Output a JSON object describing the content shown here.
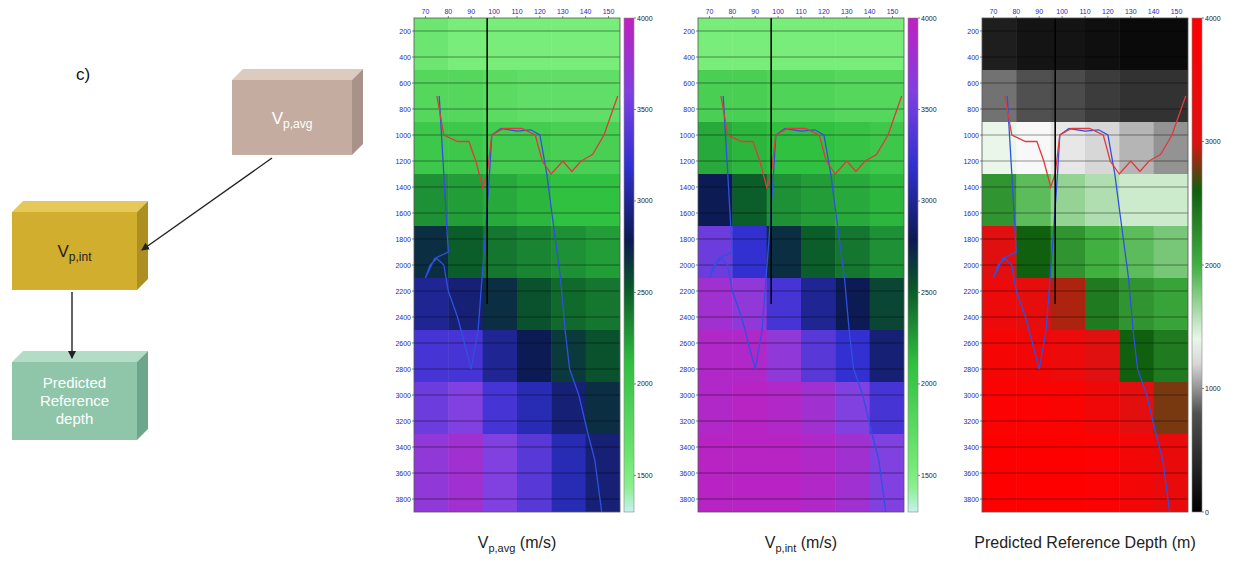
{
  "diagram": {
    "panel_label": "c)",
    "nodes": [
      {
        "label": "V",
        "sub": "p,avg"
      },
      {
        "label": "V",
        "sub": "p,int"
      },
      {
        "label": "Predicted Reference depth"
      }
    ]
  },
  "overlays": [
    {
      "color": "#3050e0",
      "x": [
        76,
        77,
        78,
        79,
        80,
        74,
        70,
        72,
        75,
        78,
        80,
        84,
        87,
        90,
        93,
        96,
        98,
        99,
        103,
        110,
        116,
        120,
        123,
        126,
        129,
        131,
        133,
        137,
        141,
        144,
        147
      ],
      "y": [
        700,
        1000,
        1300,
        1600,
        1900,
        1950,
        2100,
        2000,
        1950,
        2000,
        2200,
        2400,
        2600,
        2800,
        2500,
        1800,
        1300,
        1000,
        950,
        970,
        960,
        1000,
        1300,
        1700,
        2100,
        2500,
        2800,
        3000,
        3300,
        3500,
        3900
      ]
    },
    {
      "color": "#e03a3a",
      "x": [
        75,
        77,
        78,
        84,
        89,
        92,
        95,
        97,
        99,
        104,
        112,
        118,
        121,
        125,
        130,
        134,
        138,
        143,
        148,
        152,
        154
      ],
      "y": [
        700,
        900,
        1000,
        1050,
        1050,
        1200,
        1400,
        1300,
        1000,
        950,
        950,
        1000,
        1200,
        1300,
        1200,
        1280,
        1200,
        1150,
        1000,
        800,
        700
      ]
    },
    {
      "color": "#000000",
      "x": [
        97,
        97
      ],
      "y": [
        100,
        2300
      ]
    }
  ],
  "chart_data": [
    {
      "type": "heatmap",
      "caption": {
        "label": "V",
        "sub": "p,avg",
        "unit": "(m/s)"
      },
      "color": "velocity",
      "grid": true,
      "xlim": [
        65,
        155
      ],
      "xticks": [
        70,
        80,
        90,
        100,
        110,
        120,
        130,
        140,
        150
      ],
      "ylim": [
        100,
        3900
      ],
      "yticks": [
        200,
        400,
        600,
        800,
        1000,
        1200,
        1400,
        1600,
        1800,
        2000,
        2200,
        2400,
        2600,
        2800,
        3000,
        3200,
        3400,
        3600,
        3800
      ],
      "x_edges": [
        65,
        80,
        95,
        110,
        125,
        140,
        155
      ],
      "y_edges": [
        100,
        500,
        900,
        1300,
        1700,
        2100,
        2500,
        2900,
        3300,
        3900
      ],
      "cells": [
        [
          1600,
          1500,
          1500,
          1500,
          1500,
          1500
        ],
        [
          1800,
          1800,
          1750,
          1700,
          1700,
          1700
        ],
        [
          2000,
          2000,
          1950,
          1950,
          1900,
          1900
        ],
        [
          2300,
          2250,
          2200,
          2150,
          2100,
          2100
        ],
        [
          2700,
          2500,
          2400,
          2350,
          2300,
          2250
        ],
        [
          3000,
          2900,
          2700,
          2550,
          2450,
          2400
        ],
        [
          3300,
          3300,
          3000,
          2800,
          2650,
          2550
        ],
        [
          3500,
          3600,
          3300,
          3100,
          2900,
          2700
        ],
        [
          3700,
          3800,
          3600,
          3400,
          3100,
          2900
        ]
      ],
      "colorbar": {
        "range": [
          1300,
          4000
        ],
        "ticks": [
          1500,
          2000,
          2500,
          3000,
          3500,
          4000
        ]
      }
    },
    {
      "type": "heatmap",
      "caption": {
        "label": "V",
        "sub": "p,int",
        "unit": "(m/s)"
      },
      "color": "velocity",
      "grid": true,
      "xlim": [
        65,
        155
      ],
      "xticks": [
        70,
        80,
        90,
        100,
        110,
        120,
        130,
        140,
        150
      ],
      "ylim": [
        100,
        3900
      ],
      "yticks": [
        200,
        400,
        600,
        800,
        1000,
        1200,
        1400,
        1600,
        1800,
        2000,
        2200,
        2400,
        2600,
        2800,
        3000,
        3200,
        3400,
        3600,
        3800
      ],
      "x_edges": [
        65,
        80,
        95,
        110,
        125,
        140,
        155
      ],
      "y_edges": [
        100,
        500,
        900,
        1300,
        1700,
        2100,
        2500,
        2900,
        3300,
        3900
      ],
      "cells": [
        [
          1500,
          1500,
          1500,
          1500,
          1500,
          1500
        ],
        [
          1900,
          1900,
          1850,
          1850,
          1800,
          1800
        ],
        [
          2200,
          2150,
          2100,
          2100,
          2050,
          2000
        ],
        [
          2800,
          2500,
          2300,
          2250,
          2200,
          2150
        ],
        [
          3500,
          3200,
          2700,
          2500,
          2400,
          2300
        ],
        [
          3800,
          3700,
          3300,
          3000,
          2800,
          2600
        ],
        [
          3900,
          3900,
          3700,
          3400,
          3200,
          2900
        ],
        [
          3900,
          3950,
          3900,
          3800,
          3600,
          3300
        ],
        [
          3950,
          3950,
          3950,
          3900,
          3800,
          3600
        ]
      ],
      "colorbar": {
        "range": [
          1300,
          4000
        ],
        "ticks": [
          1500,
          2000,
          2500,
          3000,
          3500,
          4000
        ]
      }
    },
    {
      "type": "heatmap",
      "caption": {
        "label": "Predicted Reference Depth",
        "sub": "",
        "unit": "(m)"
      },
      "color": "depth",
      "grid": true,
      "xlim": [
        65,
        155
      ],
      "xticks": [
        70,
        80,
        90,
        100,
        110,
        120,
        130,
        140,
        150
      ],
      "ylim": [
        100,
        3900
      ],
      "yticks": [
        200,
        400,
        600,
        800,
        1000,
        1200,
        1400,
        1600,
        1800,
        2000,
        2200,
        2400,
        2600,
        2800,
        3000,
        3200,
        3400,
        3600,
        3800
      ],
      "x_edges": [
        65,
        80,
        95,
        110,
        125,
        140,
        155
      ],
      "y_edges": [
        100,
        500,
        900,
        1300,
        1700,
        2100,
        2500,
        2900,
        3300,
        3900
      ],
      "cells": [
        [
          300,
          200,
          200,
          150,
          100,
          100
        ],
        [
          900,
          800,
          750,
          600,
          500,
          500
        ],
        [
          1400,
          1300,
          1250,
          1200,
          1100,
          1000
        ],
        [
          2200,
          1900,
          1700,
          1600,
          1500,
          1500
        ],
        [
          3000,
          2600,
          2200,
          2000,
          1900,
          1800
        ],
        [
          3400,
          3200,
          2900,
          2400,
          2200,
          2100
        ],
        [
          3700,
          3600,
          3400,
          3000,
          2600,
          2400
        ],
        [
          3900,
          3900,
          3800,
          3500,
          3100,
          2800
        ],
        [
          4000,
          4000,
          4000,
          3900,
          3600,
          3300
        ]
      ],
      "colorbar": {
        "range": [
          0,
          4000
        ],
        "ticks": [
          0,
          1000,
          2000,
          3000,
          4000
        ]
      }
    }
  ]
}
